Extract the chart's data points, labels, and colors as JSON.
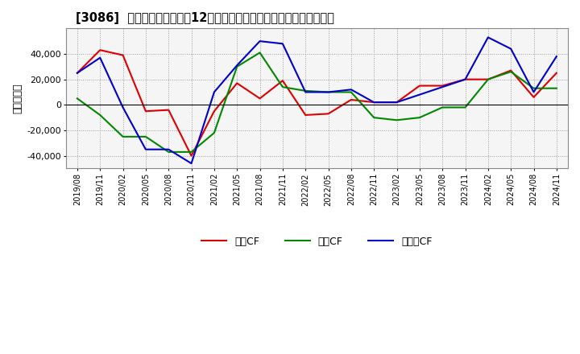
{
  "title": "[3086]  キャッシュフローの12か月移動合計の対前年同期増減額の推移",
  "ylabel": "（百万円）",
  "x_labels": [
    "2019/08",
    "2019/11",
    "2020/02",
    "2020/05",
    "2020/08",
    "2020/11",
    "2021/02",
    "2021/05",
    "2021/08",
    "2021/11",
    "2022/02",
    "2022/05",
    "2022/08",
    "2022/11",
    "2023/02",
    "2023/05",
    "2023/08",
    "2023/11",
    "2024/02",
    "2024/05",
    "2024/08",
    "2024/11"
  ],
  "operating_cf": [
    25000,
    43000,
    39000,
    -5000,
    -4000,
    -40000,
    -5000,
    17000,
    5000,
    19000,
    -8000,
    -7000,
    4000,
    2000,
    2000,
    15000,
    15000,
    20000,
    20000,
    27000,
    6000,
    25000
  ],
  "investing_cf": [
    5000,
    -8000,
    -25000,
    -25000,
    -37000,
    -37000,
    -22000,
    30000,
    41000,
    14000,
    11000,
    10000,
    10000,
    -10000,
    -12000,
    -10000,
    -2000,
    -2000,
    20000,
    26000,
    13000,
    13000
  ],
  "free_cf": [
    25000,
    37000,
    -2000,
    -35000,
    -35000,
    -46000,
    10000,
    31000,
    50000,
    48000,
    10000,
    10000,
    12000,
    2000,
    2000,
    8000,
    14000,
    20000,
    53000,
    44000,
    10000,
    38000
  ],
  "legend_labels": [
    "営業CF",
    "投資CF",
    "フリーCF"
  ],
  "operating_color": "#dd0000",
  "investing_color": "#008800",
  "free_color": "#0000cc",
  "ylim": [
    -50000,
    60000
  ],
  "yticks": [
    -40000,
    -20000,
    0,
    20000,
    40000
  ],
  "background_color": "#ffffff",
  "plot_bg_color": "#f0f0f0",
  "grid_color": "#999999"
}
